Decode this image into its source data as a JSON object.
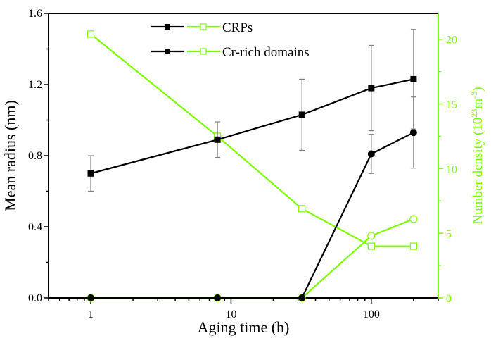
{
  "chart_data": {
    "type": "line",
    "xlabel": "Aging time (h)",
    "ylabel": "Mean radius (nm)",
    "y2label": "Number density (10^23 m^-3)",
    "y2label_parts": {
      "base": "Number density (10",
      "exp1": "23",
      "mid": "m",
      "exp2": "-3",
      "end": ")"
    },
    "xscale": "log",
    "xlim": [
      0.5,
      300
    ],
    "ylim": [
      0,
      1.6
    ],
    "y2lim": [
      0,
      22
    ],
    "xticks": [
      1,
      10,
      100
    ],
    "xtick_labels": [
      "1",
      "10",
      "100"
    ],
    "yticks": [
      0.0,
      0.4,
      0.8,
      1.2,
      1.6
    ],
    "ytick_labels": [
      "0.0",
      "0.4",
      "0.8",
      "1.2",
      "1.6"
    ],
    "y2ticks": [
      0,
      5,
      10,
      15,
      20
    ],
    "y2tick_labels": [
      "0",
      "5",
      "10",
      "15",
      "20"
    ],
    "grid": false,
    "legend_placement": "top-center",
    "legend": [
      "CRPs",
      "Cr-rich domains"
    ],
    "colors": {
      "radius": "#000000",
      "density": "#7CFC00",
      "axis_right": "#7CFC00",
      "errorbar": "#808080"
    },
    "x": [
      1,
      8,
      32,
      100,
      200
    ],
    "series": [
      {
        "group": "CRPs",
        "axis": "left",
        "marker": "filled-square",
        "values": [
          0.7,
          0.89,
          1.03,
          1.18,
          1.23
        ],
        "errors": [
          0.1,
          0.1,
          0.2,
          0.24,
          0.28
        ]
      },
      {
        "group": "Cr-rich domains",
        "axis": "left",
        "marker": "filled-circle",
        "values": [
          0,
          0,
          0,
          0.81,
          0.93
        ],
        "errors": [
          0,
          0,
          0,
          0.11,
          0.2
        ]
      },
      {
        "group": "CRPs",
        "axis": "right",
        "marker": "open-square",
        "values": [
          20.4,
          12.5,
          6.9,
          4.0,
          4.0
        ]
      },
      {
        "group": "Cr-rich domains",
        "axis": "right",
        "marker": "open-circle",
        "values": [
          0,
          0,
          0,
          4.8,
          6.1
        ]
      }
    ]
  }
}
